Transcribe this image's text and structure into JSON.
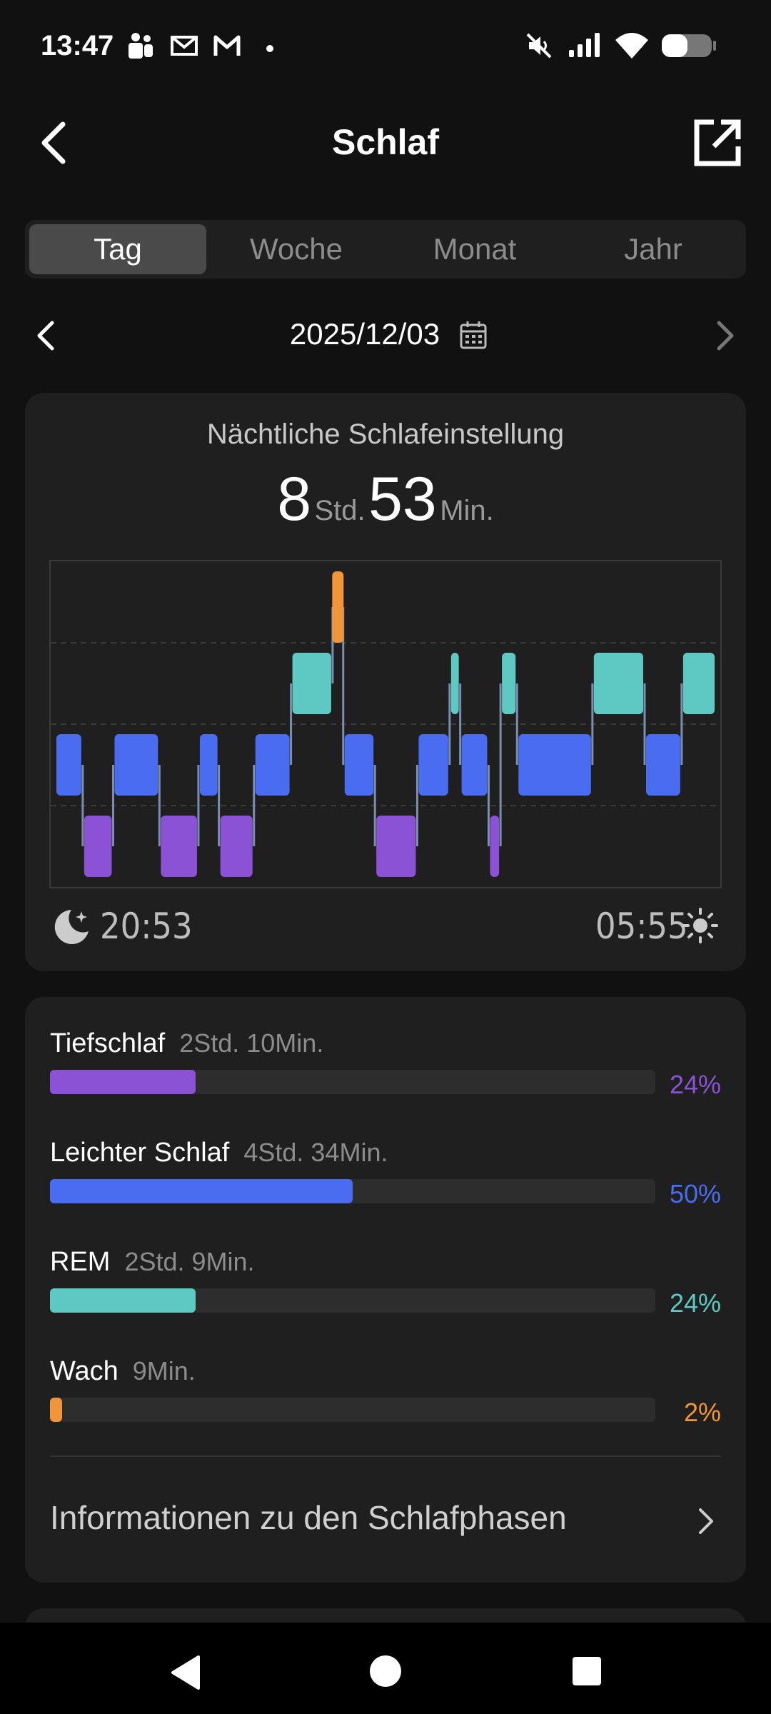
{
  "status_bar": {
    "time": "13:47"
  },
  "header": {
    "title": "Schlaf"
  },
  "tabs": [
    {
      "label": "Tag",
      "active": true
    },
    {
      "label": "Woche",
      "active": false
    },
    {
      "label": "Monat",
      "active": false
    },
    {
      "label": "Jahr",
      "active": false
    }
  ],
  "date": {
    "value": "2025/12/03"
  },
  "summary": {
    "subtitle": "Nächtliche Schlafeinstellung",
    "hours": "8",
    "hours_unit": "Std.",
    "minutes": "53",
    "minutes_unit": "Min.",
    "start_time": "20:53",
    "end_time": "05:55"
  },
  "chart_data": {
    "type": "bar",
    "levels": [
      "Wach",
      "REM",
      "Leichter Schlaf",
      "Tiefschlaf"
    ],
    "colors": {
      "Wach": "#f0953a",
      "REM": "#5ec9c2",
      "Leichter Schlaf": "#4a6cf0",
      "Tiefschlaf": "#8c52d6"
    },
    "segments": [
      {
        "stage": "Leichter Schlaf",
        "start": 0.0,
        "end": 0.042
      },
      {
        "stage": "Tiefschlaf",
        "start": 0.042,
        "end": 0.088
      },
      {
        "stage": "Leichter Schlaf",
        "start": 0.088,
        "end": 0.158
      },
      {
        "stage": "Tiefschlaf",
        "start": 0.158,
        "end": 0.217
      },
      {
        "stage": "Leichter Schlaf",
        "start": 0.217,
        "end": 0.248
      },
      {
        "stage": "Tiefschlaf",
        "start": 0.248,
        "end": 0.301
      },
      {
        "stage": "Leichter Schlaf",
        "start": 0.301,
        "end": 0.357
      },
      {
        "stage": "REM",
        "start": 0.357,
        "end": 0.42
      },
      {
        "stage": "Wach",
        "start": 0.42,
        "end": 0.436
      },
      {
        "stage": "Leichter Schlaf",
        "start": 0.436,
        "end": 0.484
      },
      {
        "stage": "Tiefschlaf",
        "start": 0.484,
        "end": 0.548
      },
      {
        "stage": "Leichter Schlaf",
        "start": 0.548,
        "end": 0.597
      },
      {
        "stage": "REM",
        "start": 0.597,
        "end": 0.613
      },
      {
        "stage": "Leichter Schlaf",
        "start": 0.613,
        "end": 0.656
      },
      {
        "stage": "Tiefschlaf",
        "start": 0.656,
        "end": 0.674
      },
      {
        "stage": "REM",
        "start": 0.674,
        "end": 0.699
      },
      {
        "stage": "Leichter Schlaf",
        "start": 0.699,
        "end": 0.813
      },
      {
        "stage": "REM",
        "start": 0.813,
        "end": 0.892
      },
      {
        "stage": "Leichter Schlaf",
        "start": 0.892,
        "end": 0.948
      },
      {
        "stage": "REM",
        "start": 0.948,
        "end": 1.0
      }
    ]
  },
  "stages": [
    {
      "name": "Tiefschlaf",
      "duration": "2Std. 10Min.",
      "percent_label": "24%",
      "percent": 24,
      "color": "#8c52d6"
    },
    {
      "name": "Leichter Schlaf",
      "duration": "4Std. 34Min.",
      "percent_label": "50%",
      "percent": 50,
      "color": "#4a6cf0"
    },
    {
      "name": "REM",
      "duration": "2Std. 9Min.",
      "percent_label": "24%",
      "percent": 24,
      "color": "#5ec9c2"
    },
    {
      "name": "Wach",
      "duration": "9Min.",
      "percent_label": "2%",
      "percent": 2,
      "color": "#f0953a"
    }
  ],
  "info_link": {
    "label": "Informationen zu den Schlafphasen"
  }
}
